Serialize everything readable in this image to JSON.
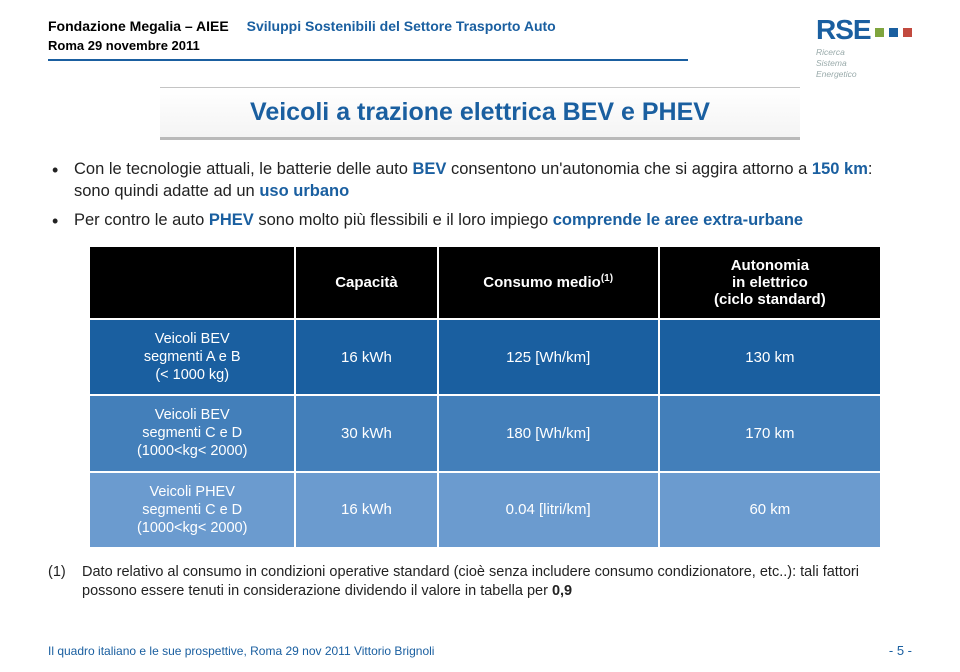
{
  "header": {
    "left": "Fondazione Megalia – AIEE",
    "right": "Sviluppi Sostenibili del Settore Trasporto Auto",
    "line2": "Roma  29 novembre 2011"
  },
  "logo": {
    "acronym": "RSE",
    "sq_colors": [
      "#7fa53e",
      "#1a5fa0",
      "#c24a3f"
    ],
    "sub1": "Ricerca",
    "sub2": "Sistema",
    "sub3": "Energetico"
  },
  "title": "Veicoli a trazione elettrica BEV e PHEV",
  "bullet1": {
    "pre": "Con le tecnologie attuali, le batterie delle auto ",
    "bev": "BEV",
    "mid": " consentono un'autonomia che si aggira attorno a ",
    "km": "150 km",
    "post": ": sono quindi adatte ad un ",
    "urb": "uso urbano"
  },
  "bullet2": {
    "pre": "Per contro le auto ",
    "phev": "PHEV",
    "mid": " sono molto più flessibili e il loro impiego ",
    "comp": "comprende le aree extra-urbane"
  },
  "table": {
    "head": {
      "c0": "",
      "c1": "Capacità",
      "c2_a": "Consumo medio",
      "c2_sup": "(1)",
      "c3_a": "Autonomia",
      "c3_b": "in elettrico",
      "c3_c": "(ciclo standard)"
    },
    "rows": [
      {
        "label_a": "Veicoli  BEV",
        "label_b": "segmenti A e B",
        "label_c": "(< 1000 kg)",
        "cap": "16 kWh",
        "cons": "125 [Wh/km]",
        "auto": "130 km",
        "bg": "#1a5fa0"
      },
      {
        "label_a": "Veicoli  BEV",
        "label_b": "segmenti C e D",
        "label_c": "(1000<kg< 2000)",
        "cap": "30 kWh",
        "cons": "180 [Wh/km]",
        "auto": "170 km",
        "bg": "#437fba"
      },
      {
        "label_a": "Veicoli PHEV",
        "label_b": "segmenti C e D",
        "label_c": "(1000<kg< 2000)",
        "cap": "16 kWh",
        "cons": "0.04 [litri/km]",
        "auto": "60 km",
        "bg": "#6b9bcf"
      }
    ],
    "col_widths": [
      "26%",
      "18%",
      "28%",
      "28%"
    ]
  },
  "footnote": {
    "label": "(1)",
    "text_a": "Dato relativo al consumo in condizioni operative standard (cioè senza includere consumo condizionatore, etc..): tali fattori possono essere tenuti in considerazione dividendo il valore in tabella per ",
    "bold": "0,9"
  },
  "footer": "Il quadro italiano e le sue prospettive, Roma 29 nov 2011 Vittorio Brignoli",
  "pagenum": "- 5 -"
}
